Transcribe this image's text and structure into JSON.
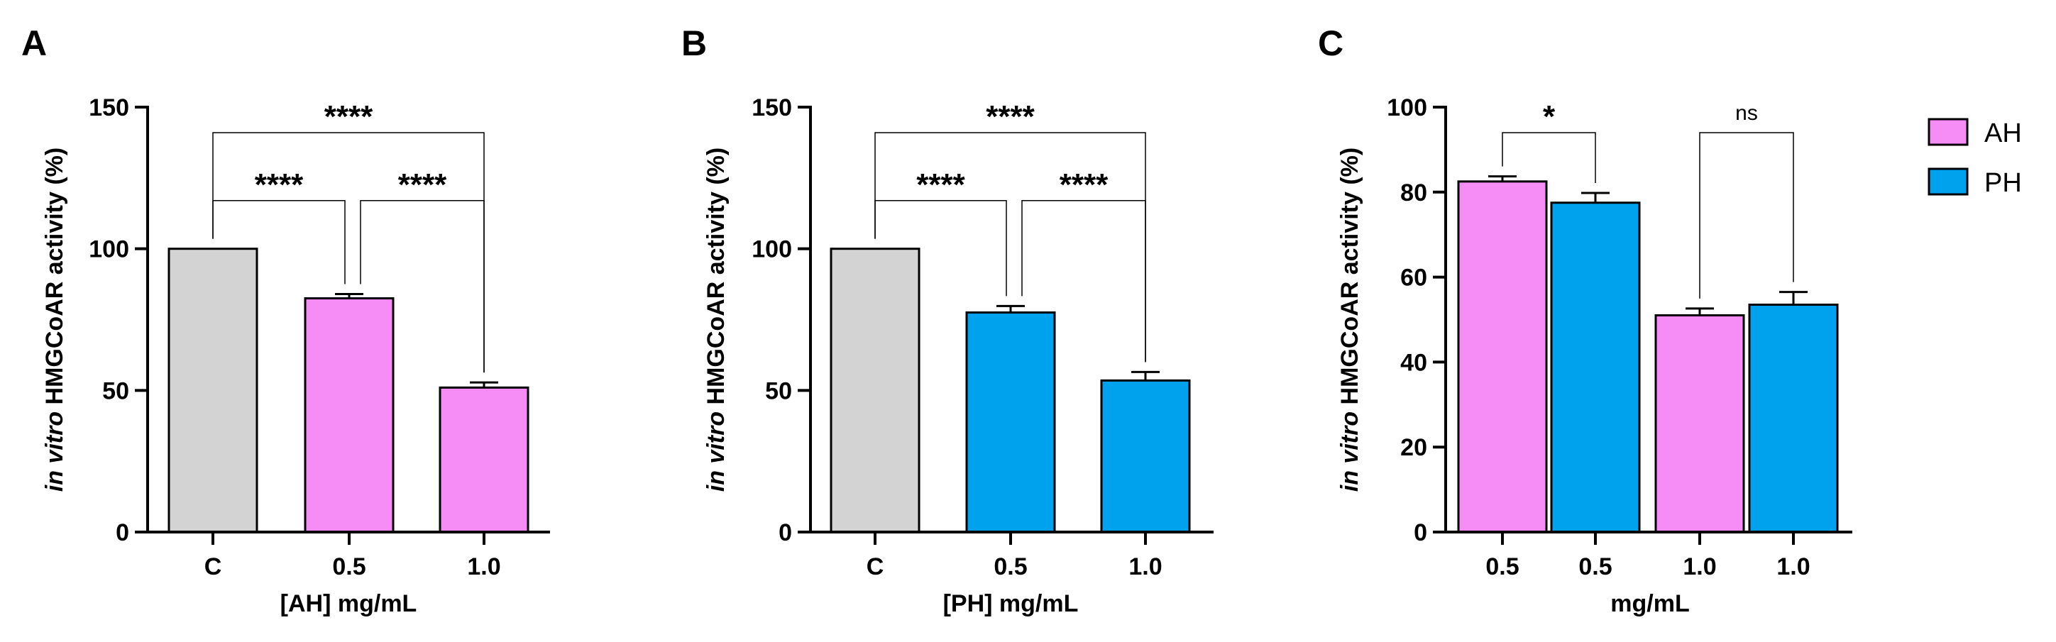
{
  "colors": {
    "control": "#d3d3d3",
    "AH": "#f68cf6",
    "PH": "#00a2ee",
    "axis": "#000000"
  },
  "legend": {
    "items": [
      {
        "label": "AH",
        "color_key": "AH"
      },
      {
        "label": "PH",
        "color_key": "PH"
      }
    ]
  },
  "chart_data": [
    {
      "type": "bar",
      "panel": "A",
      "title": "",
      "categories": [
        "C",
        "0.5",
        "1.0"
      ],
      "values": [
        100,
        82.5,
        51
      ],
      "errors": [
        0,
        1.5,
        1.8
      ],
      "groups": [
        "control",
        "AH",
        "AH"
      ],
      "xlabel": "[AH] mg/mL",
      "ylabel_italic": "in vitro",
      "ylabel": "HMGCoAR activity (%)",
      "ylim": [
        0,
        150
      ],
      "yticks": [
        "0",
        "50",
        "100",
        "150"
      ],
      "grid": false,
      "significance": [
        {
          "from": 0,
          "to": 1,
          "label": "****",
          "y": 117
        },
        {
          "from": 1,
          "to": 2,
          "label": "****",
          "y": 117
        },
        {
          "from": 0,
          "to": 2,
          "label": "****",
          "y": 141
        }
      ]
    },
    {
      "type": "bar",
      "panel": "B",
      "title": "",
      "categories": [
        "C",
        "0.5",
        "1.0"
      ],
      "values": [
        100,
        77.5,
        53.5
      ],
      "errors": [
        0,
        2.3,
        3
      ],
      "groups": [
        "control",
        "PH",
        "PH"
      ],
      "xlabel": "[PH] mg/mL",
      "ylabel_italic": "in vitro",
      "ylabel": "HMGCoAR activity (%)",
      "ylim": [
        0,
        150
      ],
      "yticks": [
        "0",
        "50",
        "100",
        "150"
      ],
      "grid": false,
      "significance": [
        {
          "from": 0,
          "to": 1,
          "label": "****",
          "y": 117
        },
        {
          "from": 1,
          "to": 2,
          "label": "****",
          "y": 117
        },
        {
          "from": 0,
          "to": 2,
          "label": "****",
          "y": 141
        }
      ]
    },
    {
      "type": "bar",
      "panel": "C",
      "title": "",
      "categories": [
        "0.5",
        "0.5",
        "1.0",
        "1.0"
      ],
      "values": [
        82.5,
        77.5,
        51,
        53.5
      ],
      "errors": [
        1.2,
        2.3,
        1.6,
        3
      ],
      "groups": [
        "AH",
        "PH",
        "AH",
        "PH"
      ],
      "xlabel": "mg/mL",
      "ylabel_italic": "in vitro",
      "ylabel": "HMGCoAR activity (%)",
      "ylim": [
        0,
        100
      ],
      "yticks": [
        "0",
        "20",
        "40",
        "60",
        "80",
        "100"
      ],
      "grid": false,
      "legend": "top-right",
      "significance": [
        {
          "from": 0,
          "to": 1,
          "label": "*",
          "y": 94
        },
        {
          "from": 2,
          "to": 3,
          "label": "ns",
          "y": 94
        }
      ]
    }
  ]
}
